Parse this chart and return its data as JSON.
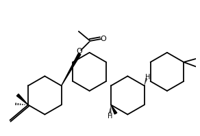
{
  "bg_color": "#ffffff",
  "line_color": "#000000",
  "figsize": [
    2.92,
    1.99
  ],
  "dpi": 100,
  "xlim": [
    0,
    10
  ],
  "ylim": [
    0,
    7
  ],
  "ring_size": 1.0,
  "lw": 1.3
}
